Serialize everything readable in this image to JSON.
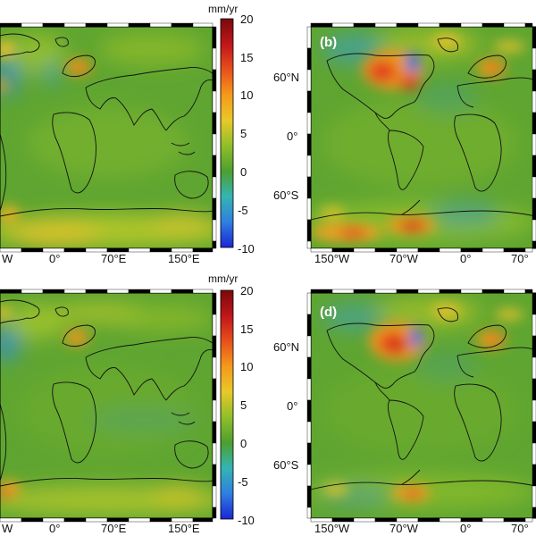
{
  "figure": {
    "colorbar": {
      "unit": "mm/yr",
      "ticks": [
        "20",
        "15",
        "10",
        "5",
        "0",
        "-5",
        "-10"
      ],
      "min": -10,
      "max": 20,
      "colors": [
        "#1b25d6",
        "#2f7fe0",
        "#34b4b4",
        "#4d9f2e",
        "#8fbf2a",
        "#e8c82a",
        "#f59a1a",
        "#e8501c",
        "#c0161a",
        "#7a0a0a"
      ]
    },
    "panels": [
      {
        "id": "a",
        "label": "",
        "lon_labels": [
          "W",
          "0°",
          "70°E",
          "150°E"
        ],
        "lat_labels": [],
        "hotspots": [
          "north-america-uplift-edge",
          "scandinavia-uplift",
          "antarctica-coast"
        ]
      },
      {
        "id": "b",
        "label": "(b)",
        "lon_labels": [
          "150°W",
          "70°W",
          "0°",
          "70°"
        ],
        "lat_labels": [
          "60°N",
          "0°",
          "60°S"
        ],
        "hotspots": [
          "hudson-bay-uplift",
          "scandinavia-uplift",
          "west-antarctica-uplift"
        ]
      },
      {
        "id": "c",
        "label": "",
        "lon_labels": [
          "W",
          "0°",
          "70°E",
          "150°E"
        ],
        "lat_labels": [],
        "hotspots": [
          "north-america-uplift-edge",
          "scandinavia-uplift",
          "antarctica-coast"
        ]
      },
      {
        "id": "d",
        "label": "(d)",
        "lon_labels": [
          "150°W",
          "70°W",
          "0°",
          "70°"
        ],
        "lat_labels": [
          "60°N",
          "0°",
          "60°S"
        ],
        "hotspots": [
          "hudson-bay-uplift",
          "scandinavia-uplift",
          "antarctica-peninsula"
        ]
      }
    ]
  }
}
